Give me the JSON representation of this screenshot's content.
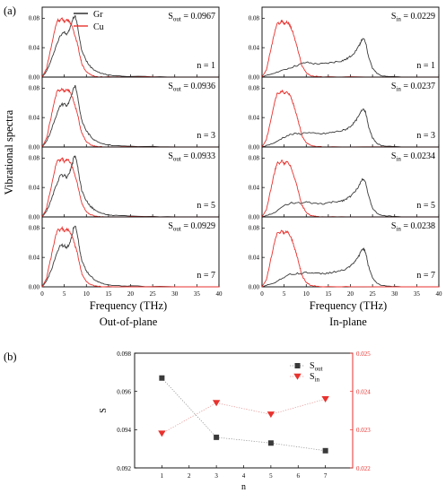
{
  "figure": {
    "label_a": "(a)",
    "label_b": "(b)",
    "ylabel_a": "Vibrational spectra",
    "legend": [
      {
        "name": "Gr",
        "color": "#222222"
      },
      {
        "name": "Cu",
        "color": "#e8322e"
      }
    ],
    "columns": [
      {
        "xlabel": "Frequency (THz)",
        "subtitle": "Out-of-plane",
        "xticks": [
          0,
          5,
          10,
          15,
          20,
          25,
          30,
          35,
          40
        ],
        "yticks": [
          "0.00",
          "0.04",
          "0.08"
        ],
        "ylim": [
          0,
          0.095
        ],
        "panels": [
          {
            "n_label": "n = 1",
            "s_symbol": "S",
            "s_sub": "out",
            "s_value": " = 0.0967"
          },
          {
            "n_label": "n = 3",
            "s_symbol": "S",
            "s_sub": "out",
            "s_value": " = 0.0936"
          },
          {
            "n_label": "n = 5",
            "s_symbol": "S",
            "s_sub": "out",
            "s_value": " = 0.0933"
          },
          {
            "n_label": "n = 7",
            "s_symbol": "S",
            "s_sub": "out",
            "s_value": " = 0.0929"
          }
        ]
      },
      {
        "xlabel": "Frequency (THz)",
        "subtitle": "In-plane",
        "xticks": [
          0,
          5,
          10,
          15,
          20,
          25,
          30,
          35,
          40
        ],
        "yticks": [
          "0.00",
          "0.04",
          "0.08"
        ],
        "ylim": [
          0,
          0.095
        ],
        "panels": [
          {
            "n_label": "n = 1",
            "s_symbol": "S",
            "s_sub": "in",
            "s_value": " = 0.0229"
          },
          {
            "n_label": "n = 3",
            "s_symbol": "S",
            "s_sub": "in",
            "s_value": " = 0.0237"
          },
          {
            "n_label": "n = 5",
            "s_symbol": "S",
            "s_sub": "in",
            "s_value": " = 0.0234"
          },
          {
            "n_label": "n = 7",
            "s_symbol": "S",
            "s_sub": "in",
            "s_value": " = 0.0238"
          }
        ]
      }
    ]
  },
  "chart_data": [
    {
      "type": "line",
      "panel": "(a) Out-of-plane",
      "x_unit": "THz",
      "xlim": [
        0,
        40
      ],
      "ylim": [
        0,
        0.095
      ],
      "series": [
        {
          "name": "Gr",
          "x": [
            0,
            1,
            2,
            3,
            4,
            5,
            5.5,
            6,
            6.5,
            7,
            7.5,
            8,
            8.5,
            9,
            10,
            11,
            12,
            13,
            14,
            16,
            20,
            30,
            40
          ],
          "y": [
            0,
            0.008,
            0.022,
            0.04,
            0.055,
            0.062,
            0.058,
            0.062,
            0.07,
            0.08,
            0.083,
            0.07,
            0.05,
            0.035,
            0.022,
            0.014,
            0.009,
            0.006,
            0.004,
            0.002,
            0.001,
            0,
            0
          ]
        },
        {
          "name": "Cu",
          "x": [
            0,
            1,
            2,
            3,
            3.5,
            4,
            4.5,
            5,
            5.5,
            6,
            6.5,
            7,
            7.5,
            8,
            8.5,
            9,
            10,
            11,
            12,
            14,
            20,
            40
          ],
          "y": [
            0,
            0.012,
            0.04,
            0.068,
            0.078,
            0.076,
            0.08,
            0.075,
            0.078,
            0.077,
            0.072,
            0.065,
            0.055,
            0.045,
            0.03,
            0.018,
            0.007,
            0.003,
            0.001,
            0,
            0,
            0
          ]
        }
      ]
    },
    {
      "type": "line",
      "panel": "(a) In-plane",
      "x_unit": "THz",
      "xlim": [
        0,
        40
      ],
      "ylim": [
        0,
        0.095
      ],
      "series": [
        {
          "name": "Gr",
          "x": [
            0,
            2,
            4,
            6,
            8,
            10,
            12,
            14,
            16,
            18,
            19,
            20,
            21,
            22,
            22.5,
            23,
            23.5,
            24,
            25,
            26,
            27,
            29,
            32,
            36,
            40
          ],
          "y": [
            0,
            0.004,
            0.008,
            0.012,
            0.016,
            0.02,
            0.018,
            0.018,
            0.02,
            0.022,
            0.024,
            0.028,
            0.034,
            0.043,
            0.05,
            0.052,
            0.046,
            0.03,
            0.012,
            0.005,
            0.002,
            0.001,
            0,
            0,
            0
          ]
        },
        {
          "name": "Cu",
          "x": [
            0,
            1,
            2,
            3,
            3.5,
            4,
            4.5,
            5,
            5.5,
            6,
            6.5,
            7,
            7.5,
            8,
            8.5,
            9,
            10,
            11,
            12,
            14,
            20,
            40
          ],
          "y": [
            0,
            0.01,
            0.038,
            0.065,
            0.074,
            0.072,
            0.077,
            0.072,
            0.075,
            0.073,
            0.068,
            0.06,
            0.05,
            0.04,
            0.028,
            0.016,
            0.006,
            0.002,
            0.001,
            0,
            0,
            0
          ]
        }
      ]
    },
    {
      "type": "scatter",
      "panel": "(b)",
      "xlabel": "n",
      "ylabel": "S",
      "xlim": [
        0,
        8
      ],
      "xticks": [
        1,
        2,
        3,
        4,
        5,
        6,
        7
      ],
      "ylim_left": [
        0.092,
        0.098
      ],
      "yticks_left": [
        "0.092",
        "0.094",
        "0.096",
        "0.098"
      ],
      "ylim_right": [
        0.022,
        0.025
      ],
      "yticks_right": [
        "0.022",
        "0.023",
        "0.024",
        "0.025"
      ],
      "series": [
        {
          "name": "S_out",
          "label_symbol": "S",
          "label_sub": "out",
          "axis": "left",
          "marker": "square",
          "color": "#3a3a3a",
          "x": [
            1,
            3,
            5,
            7
          ],
          "y": [
            0.0967,
            0.0936,
            0.0933,
            0.0929
          ]
        },
        {
          "name": "S_in",
          "label_symbol": "S",
          "label_sub": "in",
          "axis": "right",
          "marker": "triangle-down",
          "color": "#e8322e",
          "x": [
            1,
            3,
            5,
            7
          ],
          "y": [
            0.0229,
            0.0237,
            0.0234,
            0.0238
          ]
        }
      ]
    }
  ]
}
